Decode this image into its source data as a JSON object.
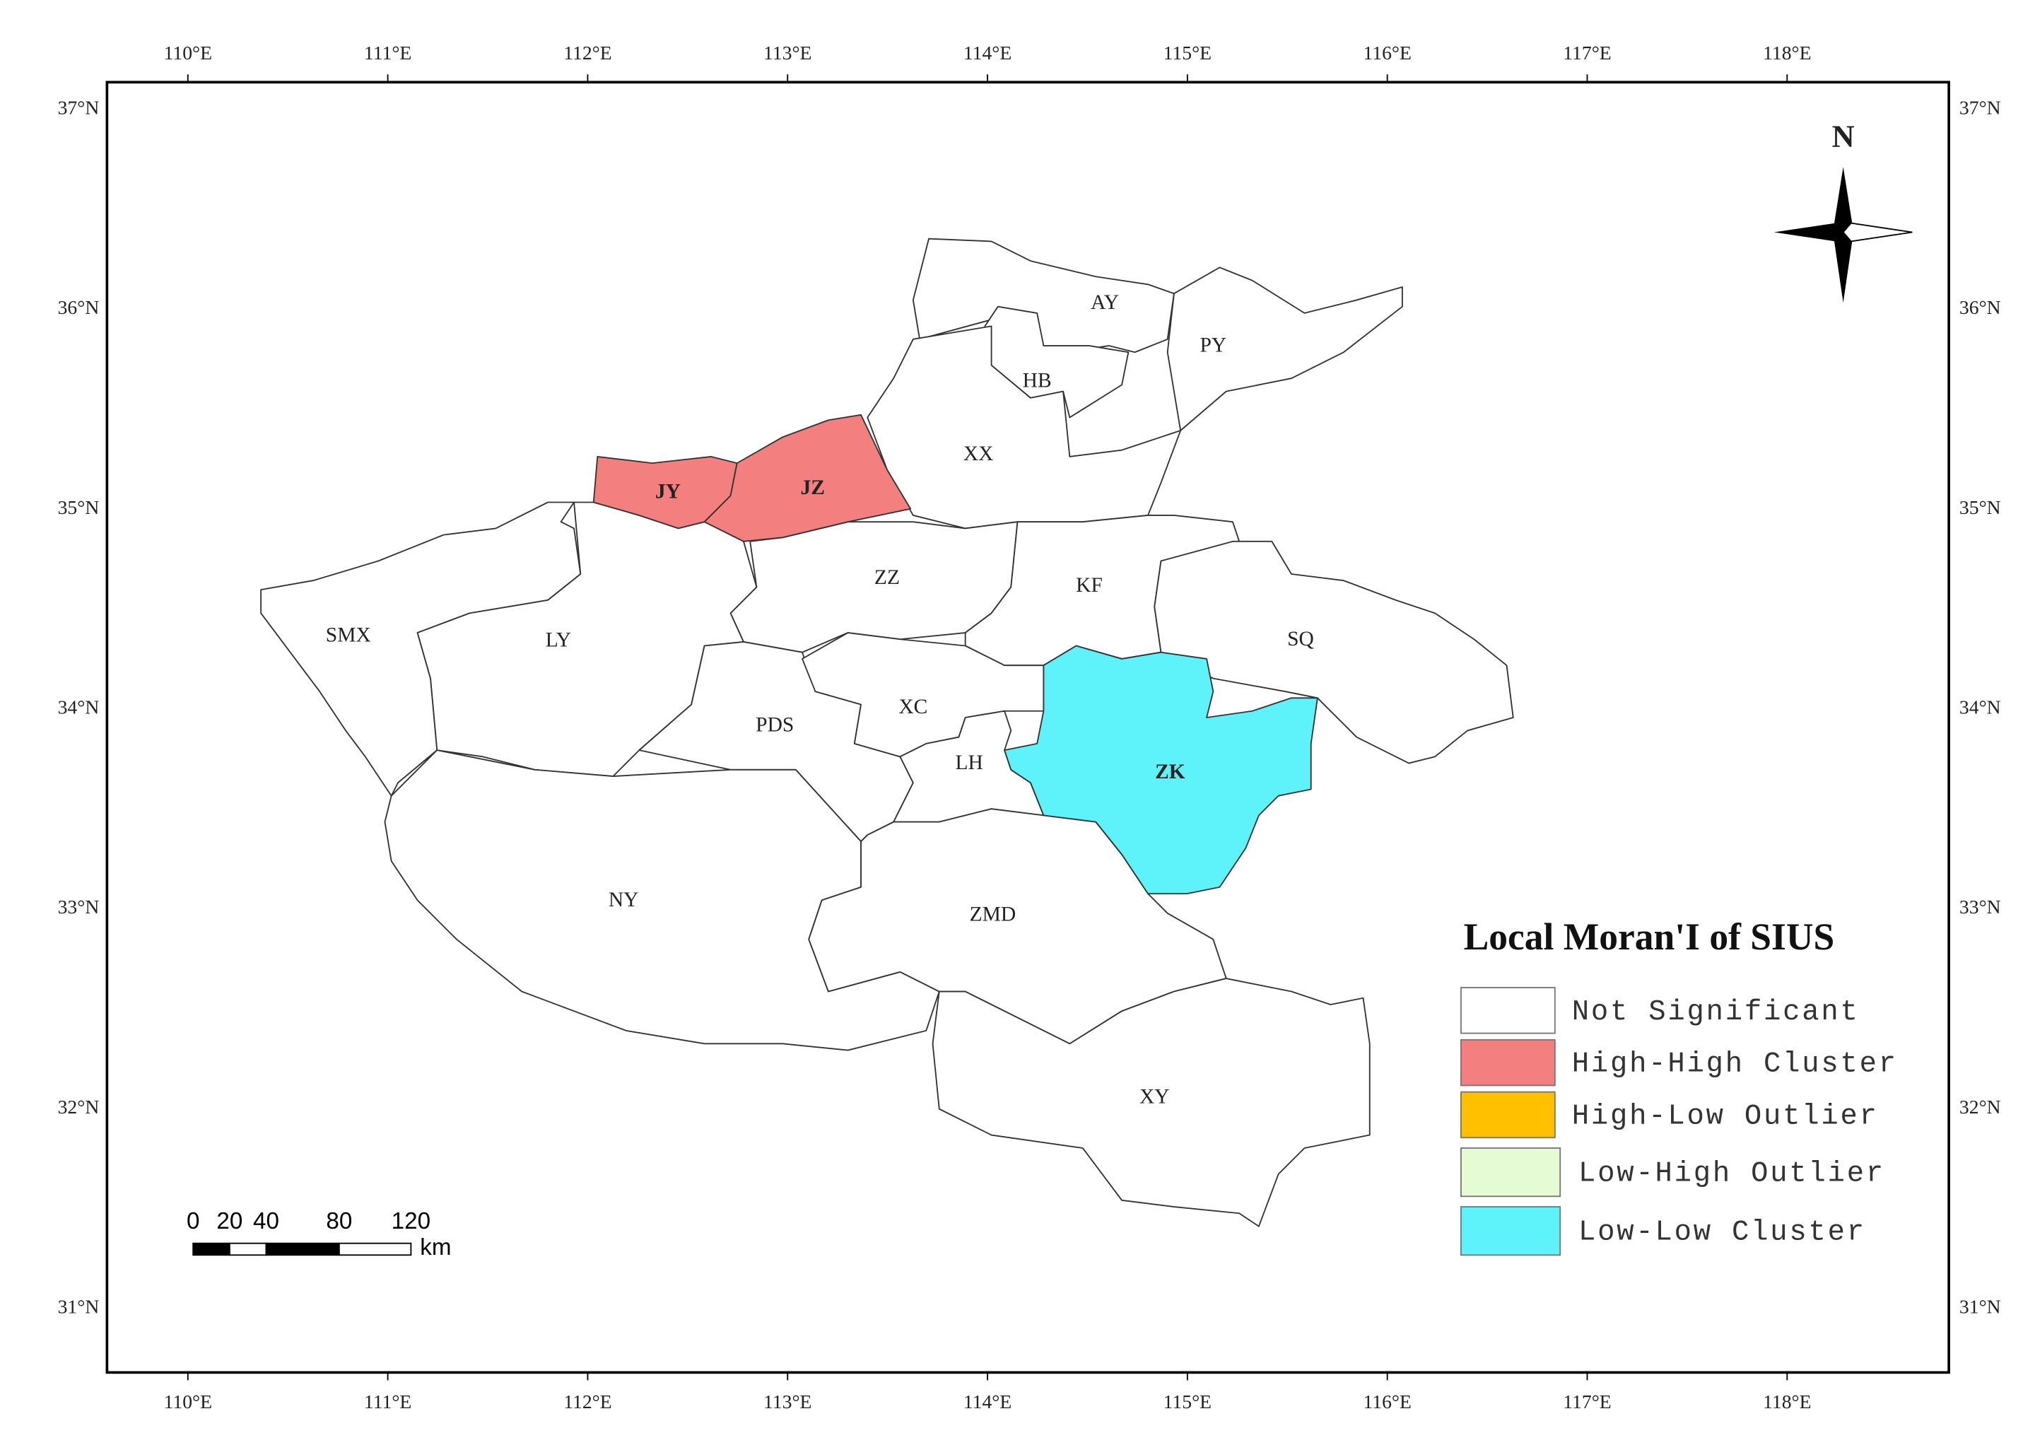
{
  "frame": {
    "lon_labels": [
      "110°E",
      "111°E",
      "112°E",
      "113°E",
      "114°E",
      "115°E",
      "116°E",
      "117°E",
      "118°E"
    ],
    "lat_labels": [
      "37°N",
      "36°N",
      "35°N",
      "34°N",
      "33°N",
      "32°N",
      "31°N"
    ]
  },
  "regions": [
    {
      "label": "AY",
      "color": "#ffffff"
    },
    {
      "label": "HB",
      "color": "#ffffff"
    },
    {
      "label": "PY",
      "color": "#ffffff"
    },
    {
      "label": "XX",
      "color": "#ffffff"
    },
    {
      "label": "JY",
      "color": "#f47f7f"
    },
    {
      "label": "JZ",
      "color": "#f47f7f"
    },
    {
      "label": "ZZ",
      "color": "#ffffff"
    },
    {
      "label": "KF",
      "color": "#ffffff"
    },
    {
      "label": "SQ",
      "color": "#ffffff"
    },
    {
      "label": "ZK",
      "color": "#5ef2fb"
    },
    {
      "label": "SMX",
      "color": "#ffffff"
    },
    {
      "label": "LY",
      "color": "#ffffff"
    },
    {
      "label": "PDS",
      "color": "#ffffff"
    },
    {
      "label": "XC",
      "color": "#ffffff"
    },
    {
      "label": "LH",
      "color": "#ffffff"
    },
    {
      "label": "NY",
      "color": "#ffffff"
    },
    {
      "label": "ZMD",
      "color": "#ffffff"
    },
    {
      "label": "XY",
      "color": "#ffffff"
    }
  ],
  "legend": {
    "title": "Local Moran'I of SIUS",
    "items": [
      {
        "label": "Not Significant",
        "color": "#ffffff"
      },
      {
        "label": "High-High Cluster",
        "color": "#f47f7f"
      },
      {
        "label": "High-Low Outlier",
        "color": "#ffc000"
      },
      {
        "label": "Low-High Outlier",
        "color": "#e4fbd4"
      },
      {
        "label": "Low-Low Cluster",
        "color": "#5ef2fb"
      }
    ]
  },
  "scale_bar": {
    "labels": [
      "0",
      "20",
      "40",
      "80",
      "120"
    ],
    "unit": "km"
  },
  "north_arrow": {
    "label": "N"
  }
}
